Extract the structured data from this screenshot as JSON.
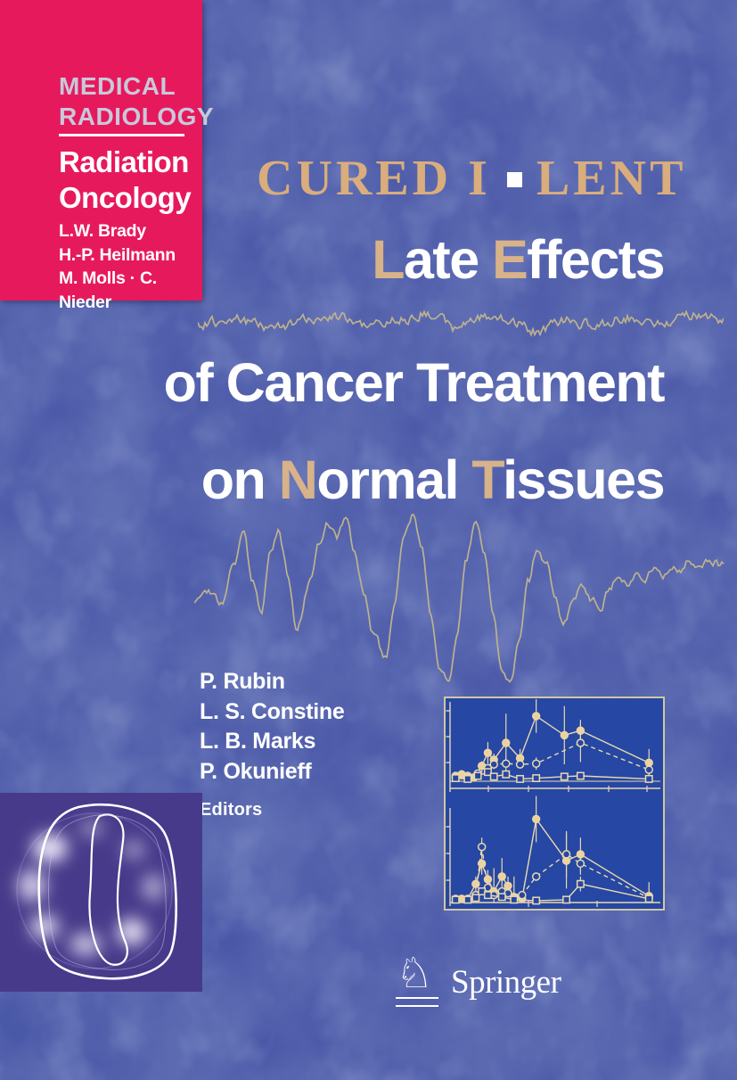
{
  "cover": {
    "series_box": {
      "series_title": [
        "MEDICAL",
        "RADIOLOGY"
      ],
      "series_name": [
        "Radiation",
        "Oncology"
      ],
      "series_editors": [
        "L.W. Brady",
        "H.-P. Heilmann",
        "M. Molls · C. Nieder"
      ]
    },
    "header": {
      "left": "CURED I",
      "right": "LENT"
    },
    "title": {
      "lines": [
        {
          "segments": [
            {
              "t": "L",
              "hl": true
            },
            {
              "t": "ate ",
              "hl": false
            },
            {
              "t": "E",
              "hl": true
            },
            {
              "t": "ffects",
              "hl": false
            }
          ]
        },
        {
          "segments": [
            {
              "t": "of Cancer Treatment",
              "hl": false
            }
          ]
        },
        {
          "segments": [
            {
              "t": "on ",
              "hl": false
            },
            {
              "t": "N",
              "hl": true
            },
            {
              "t": "ormal ",
              "hl": false
            },
            {
              "t": "T",
              "hl": true
            },
            {
              "t": "issues",
              "hl": false
            }
          ]
        }
      ]
    },
    "book_editors": {
      "names": [
        "P. Rubin",
        "L. S. Constine",
        "L. B. Marks",
        "P. Okunieff"
      ],
      "label": "Editors"
    },
    "publisher": {
      "name": "Springer",
      "horse_glyph": "♘"
    },
    "colors": {
      "background": "#4a58a8",
      "background_dark": "#39489b",
      "background_light": "#7583c4",
      "series_pink": "#e7195d",
      "series_title_color": "#c7c9da",
      "header_tan": "#d9ad7c",
      "title_white": "#ffffff",
      "title_tan": "#d8b289",
      "waveform": "#bdb28e",
      "panel_bg": "#2647a3",
      "panel_border": "#cfc8a2",
      "chart_line": "#ead9ae",
      "marker_fill": "#ecd19c",
      "scan_bg": "#473a8a",
      "scan_line": "#ffffff"
    }
  },
  "chart_data": [
    {
      "type": "line",
      "title": "",
      "xlabel": "",
      "ylabel": "",
      "tick_labels": "none (unlabeled tick marks only)",
      "x_range": [
        0,
        100
      ],
      "y_range": [
        0,
        100
      ],
      "legend": "none",
      "series": [
        {
          "name": "filled-circle-solid",
          "marker": "filled-circle",
          "line": "solid",
          "points": [
            [
              1,
              7,
              0
            ],
            [
              4,
              9,
              0
            ],
            [
              7,
              7,
              0
            ],
            [
              10,
              5,
              0
            ],
            [
              14,
              20,
              6
            ],
            [
              17,
              37,
              14
            ],
            [
              20,
              28,
              8
            ],
            [
              26,
              50,
              38
            ],
            [
              33,
              30,
              12
            ],
            [
              41,
              85,
              22
            ],
            [
              55,
              60,
              38
            ],
            [
              63,
              66,
              14
            ],
            [
              97,
              24,
              18
            ]
          ]
        },
        {
          "name": "open-circle-dashed",
          "marker": "open-circle",
          "line": "dashed",
          "points": [
            [
              1,
              5,
              0
            ],
            [
              7,
              4,
              0
            ],
            [
              12,
              10,
              0
            ],
            [
              17,
              17,
              5
            ],
            [
              20,
              22,
              6
            ],
            [
              26,
              23,
              5
            ],
            [
              33,
              22,
              4
            ],
            [
              41,
              23,
              8
            ],
            [
              63,
              50,
              25
            ],
            [
              97,
              15,
              10
            ]
          ]
        },
        {
          "name": "open-square-solid",
          "marker": "open-square",
          "line": "solid",
          "points": [
            [
              1,
              4,
              0
            ],
            [
              7,
              3,
              0
            ],
            [
              12,
              7,
              0
            ],
            [
              17,
              12,
              0
            ],
            [
              20,
              6,
              0
            ],
            [
              26,
              9,
              0
            ],
            [
              33,
              3,
              0
            ],
            [
              41,
              4,
              0
            ],
            [
              55,
              6,
              0
            ],
            [
              63,
              7,
              0
            ],
            [
              97,
              3,
              0
            ]
          ]
        }
      ]
    },
    {
      "type": "line",
      "title": "",
      "xlabel": "",
      "ylabel": "",
      "tick_labels": "none (unlabeled tick marks only)",
      "x_range": [
        0,
        100
      ],
      "y_range": [
        0,
        100
      ],
      "legend": "none",
      "series": [
        {
          "name": "filled-circle-solid",
          "marker": "filled-circle",
          "line": "solid",
          "points": [
            [
              1,
              4,
              0
            ],
            [
              4,
              4,
              0
            ],
            [
              7,
              4,
              0
            ],
            [
              11,
              20,
              8
            ],
            [
              14,
              42,
              12
            ],
            [
              17,
              25,
              10
            ],
            [
              20,
              12,
              25
            ],
            [
              24,
              28,
              20
            ],
            [
              27,
              18,
              10
            ],
            [
              30,
              6,
              22
            ],
            [
              34,
              4,
              0
            ],
            [
              41,
              90,
              25
            ],
            [
              56,
              45,
              30
            ],
            [
              63,
              52,
              18
            ],
            [
              97,
              7,
              15
            ]
          ]
        },
        {
          "name": "open-circle-dashed",
          "marker": "open-circle",
          "line": "dashed",
          "points": [
            [
              11,
              8,
              0
            ],
            [
              14,
              60,
              10
            ],
            [
              17,
              16,
              0
            ],
            [
              20,
              8,
              0
            ],
            [
              24,
              12,
              0
            ],
            [
              27,
              10,
              0
            ],
            [
              34,
              8,
              0
            ],
            [
              41,
              28,
              0
            ],
            [
              56,
              52,
              25
            ],
            [
              63,
              42,
              12
            ],
            [
              97,
              5,
              0
            ]
          ]
        },
        {
          "name": "open-square-solid",
          "marker": "open-square",
          "line": "solid",
          "points": [
            [
              1,
              3,
              0
            ],
            [
              7,
              3,
              0
            ],
            [
              11,
              5,
              0
            ],
            [
              14,
              12,
              0
            ],
            [
              17,
              8,
              0
            ],
            [
              24,
              6,
              0
            ],
            [
              30,
              3,
              0
            ],
            [
              41,
              2,
              0
            ],
            [
              56,
              3,
              0
            ],
            [
              63,
              20,
              8
            ],
            [
              97,
              4,
              0
            ]
          ]
        }
      ]
    }
  ]
}
